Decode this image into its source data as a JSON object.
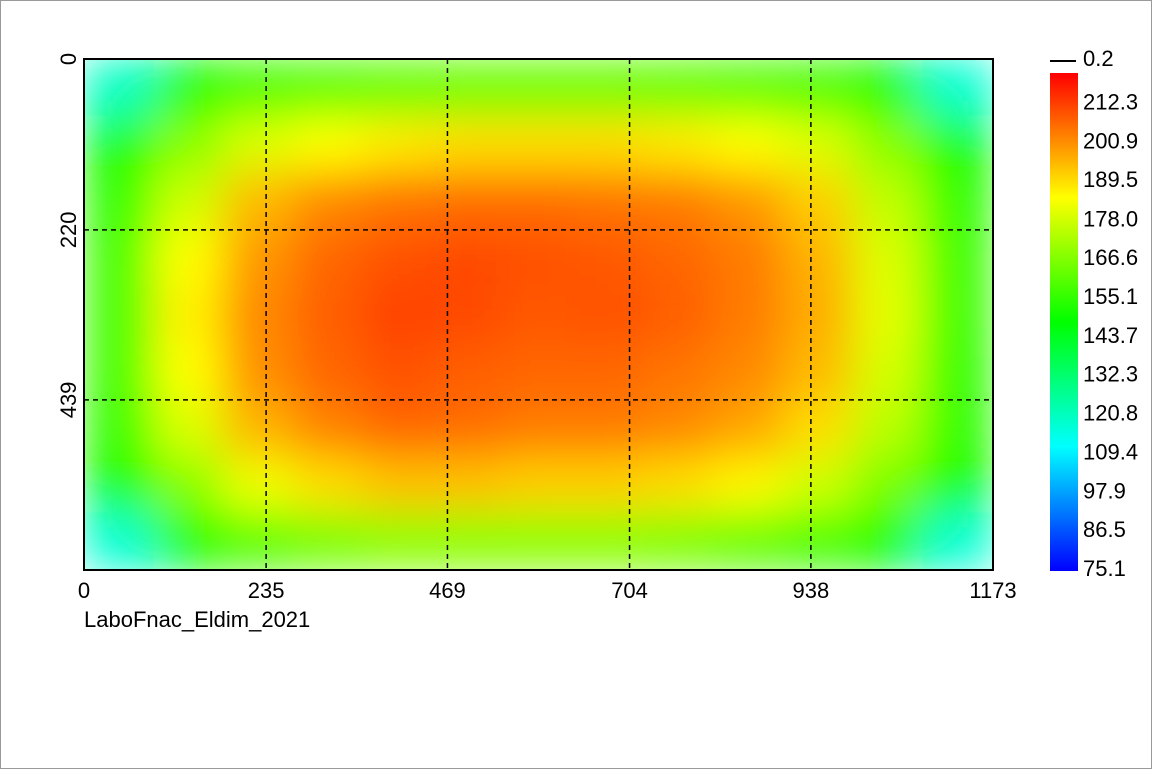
{
  "chart_data": {
    "type": "heatmap",
    "caption": "LaboFnac_Eldim_2021",
    "xlim": [
      0,
      1173
    ],
    "xticks": [
      0,
      235,
      469,
      704,
      938,
      1173
    ],
    "ylim": [
      0,
      658
    ],
    "yticks": [
      0,
      220,
      439
    ],
    "y_inverted": true,
    "grid": true,
    "colormap": [
      "#0000ff",
      "#00ffff",
      "#00ff00",
      "#ffff00",
      "#ff0000"
    ],
    "clim": [
      75.1,
      221.7
    ],
    "colorbar_ticks": [
      212.3,
      200.9,
      189.5,
      {
        "value": 178,
        "label": "178.0"
      },
      166.6,
      155.1,
      143.7,
      132.3,
      120.8,
      109.4,
      97.9,
      86.5,
      75.1
    ],
    "colorbar_top_label": "0.2",
    "z": [
      [
        120,
        150,
        158,
        160,
        162,
        163,
        163,
        163,
        162,
        160,
        158,
        150,
        118
      ],
      [
        150,
        168,
        180,
        185,
        188,
        190,
        190,
        190,
        188,
        185,
        180,
        168,
        150
      ],
      [
        155,
        178,
        195,
        202,
        205,
        206,
        206,
        205,
        204,
        200,
        192,
        176,
        155
      ],
      [
        158,
        185,
        200,
        207,
        210,
        211,
        210,
        209,
        207,
        204,
        196,
        180,
        157
      ],
      [
        158,
        187,
        202,
        208,
        212,
        211,
        209,
        210,
        208,
        204,
        197,
        181,
        157
      ],
      [
        158,
        185,
        201,
        207,
        210,
        208,
        207,
        207,
        205,
        202,
        195,
        179,
        156
      ],
      [
        156,
        180,
        196,
        203,
        207,
        206,
        204,
        204,
        202,
        198,
        190,
        175,
        155
      ],
      [
        150,
        168,
        183,
        190,
        194,
        194,
        192,
        192,
        190,
        186,
        178,
        166,
        150
      ],
      [
        118,
        150,
        160,
        165,
        168,
        168,
        168,
        168,
        166,
        162,
        158,
        150,
        118
      ]
    ]
  }
}
